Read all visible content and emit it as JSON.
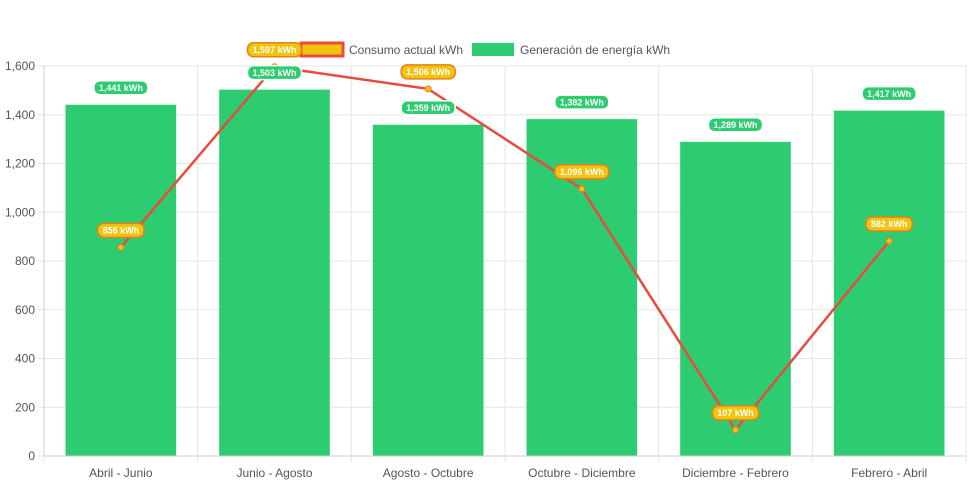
{
  "chart_data": {
    "type": "bar",
    "categories": [
      "Abril - Junio",
      "Junio - Agosto",
      "Agosto - Octubre",
      "Octubre - Diciembre",
      "Diciembre - Febrero",
      "Febrero - Abril"
    ],
    "series": [
      {
        "name": "Consumo actual kWh",
        "type": "line",
        "values": [
          856,
          1597,
          1506,
          1096,
          107,
          882
        ],
        "labels": [
          "856 kWh",
          "1,597 kWh",
          "1,506 kWh",
          "1,096 kWh",
          "107 kWh",
          "882 kWh"
        ],
        "color": "#e74c3c",
        "point_color": "#f1c40f",
        "label_bg": "#f1c40f",
        "label_border": "#e67e22"
      },
      {
        "name": "Generación de energía kWh",
        "type": "bar",
        "values": [
          1441,
          1503,
          1359,
          1382,
          1289,
          1417
        ],
        "labels": [
          "1,441 kWh",
          "1,503 kWh",
          "1,359 kWh",
          "1,382 kWh",
          "1,289 kWh",
          "1,417 kWh"
        ],
        "color": "#2ecc71",
        "label_bg": "#2ecc71"
      }
    ],
    "ylim": [
      0,
      1600
    ],
    "yticks": [
      0,
      200,
      400,
      600,
      800,
      1000,
      1200,
      1400,
      1600
    ],
    "ytick_labels": [
      "0",
      "200",
      "400",
      "600",
      "800",
      "1,000",
      "1,200",
      "1,400",
      "1,600"
    ],
    "grid": true,
    "legend": "top-center"
  }
}
